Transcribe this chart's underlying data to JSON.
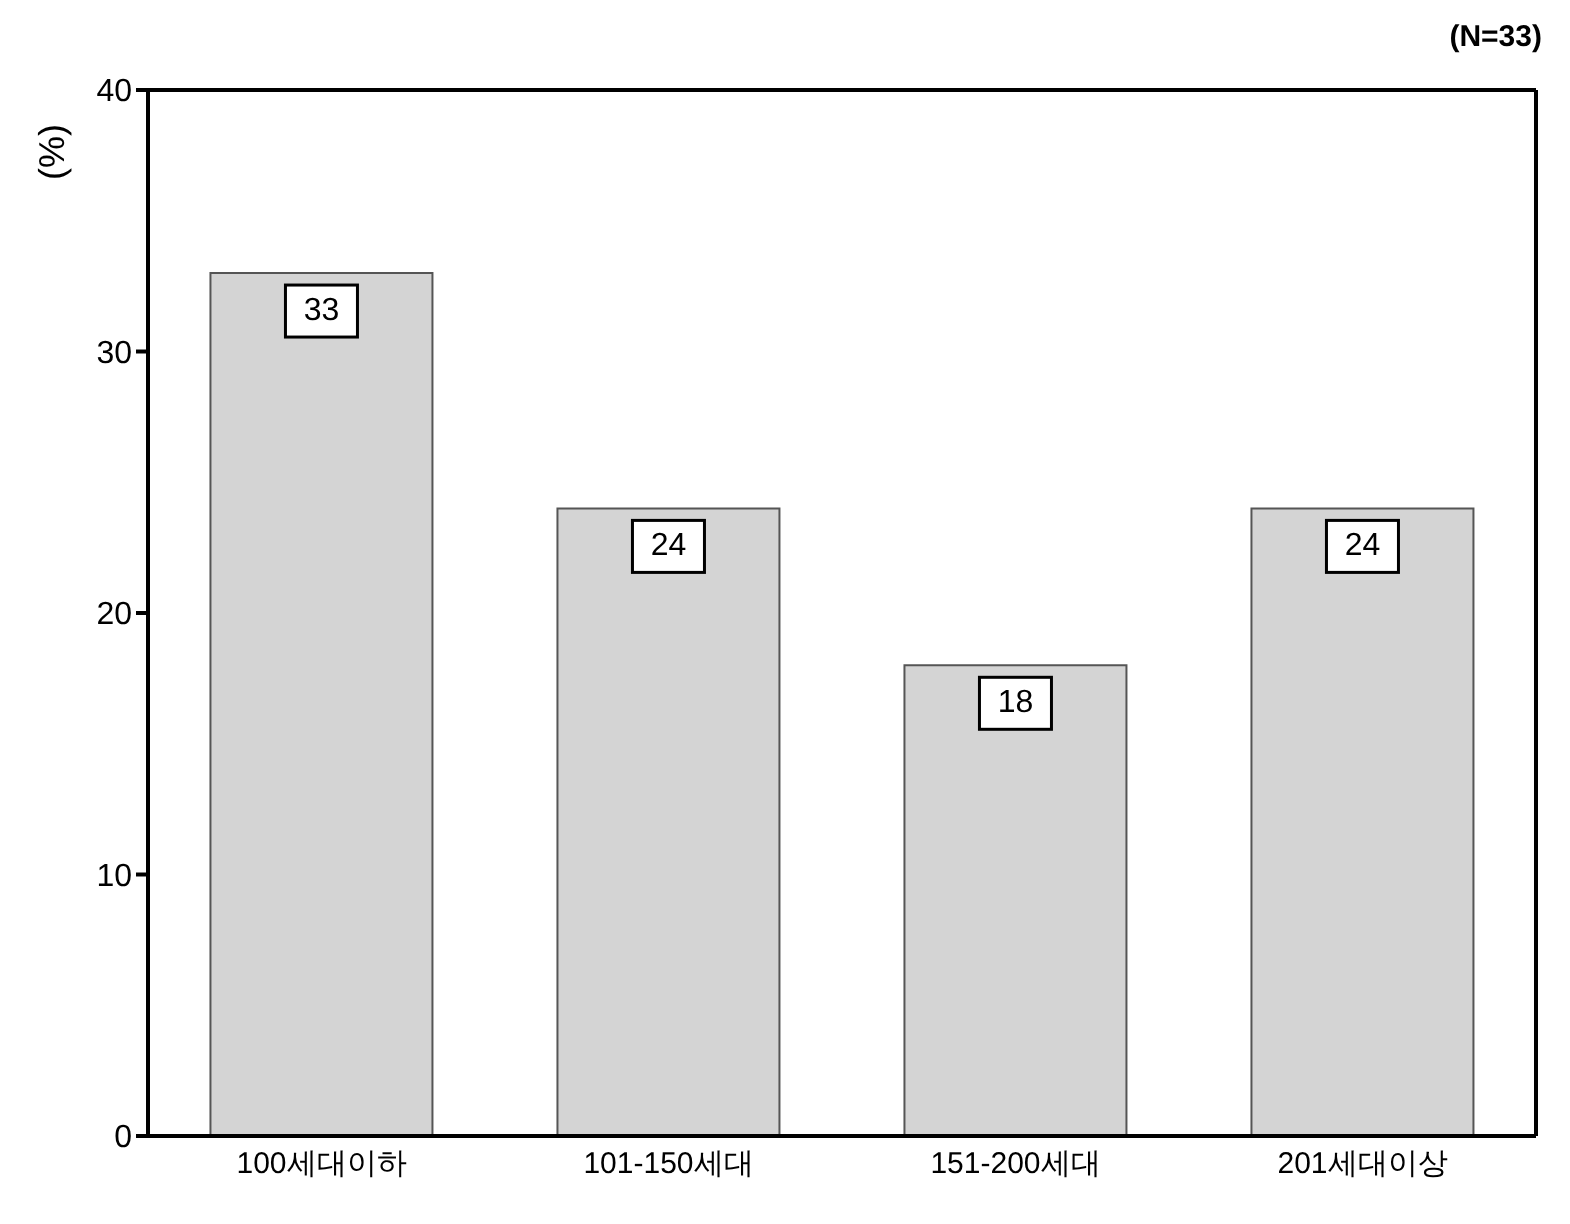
{
  "chart_data": {
    "type": "bar",
    "ylabel": "(%)",
    "annotations": [
      "(N=33)"
    ],
    "categories": [
      "100세대이하",
      "101-150세대",
      "151-200세대",
      "201세대이상"
    ],
    "values": [
      33,
      24,
      18,
      24
    ],
    "color": "#d4d4d4",
    "ylim": [
      0,
      40
    ],
    "yticks": [
      0,
      10,
      20,
      30,
      40
    ],
    "grid": false,
    "data_labels": true
  }
}
